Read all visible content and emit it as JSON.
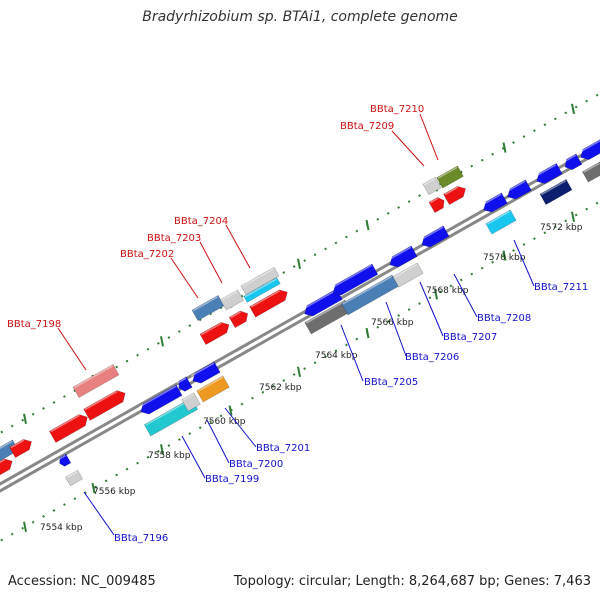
{
  "title": "Bradyrhizobium sp. BTAi1, complete genome",
  "footer": {
    "accession": "Accession: NC_009485",
    "summary": "Topology: circular; Length: 8,264,687 bp; Genes: 7,463"
  },
  "coordinates": [
    "7554 kbp",
    "7556 kbp",
    "7558 kbp",
    "7560 kbp",
    "7562 kbp",
    "7564 kbp",
    "7566 kbp",
    "7568 kbp",
    "7570 kbp",
    "7572 kbp"
  ],
  "labels_forward": [
    "BBta_7198",
    "BBta_7202",
    "BBta_7203",
    "BBta_7204",
    "BBta_7209",
    "BBta_7210"
  ],
  "labels_reverse": [
    "BBta_7196",
    "BBta_7199",
    "BBta_7200",
    "BBta_7201",
    "BBta_7205",
    "BBta_7206",
    "BBta_7207",
    "BBta_7208",
    "BBta_7211"
  ],
  "colors": {
    "forward_label": "#cc1111",
    "reverse_label": "#1111cc",
    "backbone": "#888888",
    "tick": "#2e7d32",
    "red": "#ee1111",
    "pink": "#e88080",
    "blue": "#1010ee",
    "steel": "#4a7fb5",
    "navy": "#0b1f6e",
    "cyan": "#18c6f0",
    "teal": "#22c8d0",
    "orange": "#ee9a22",
    "olive": "#6b8a2a",
    "lightgray": "#cfcfcf",
    "darkgray": "#6e6e6e"
  }
}
